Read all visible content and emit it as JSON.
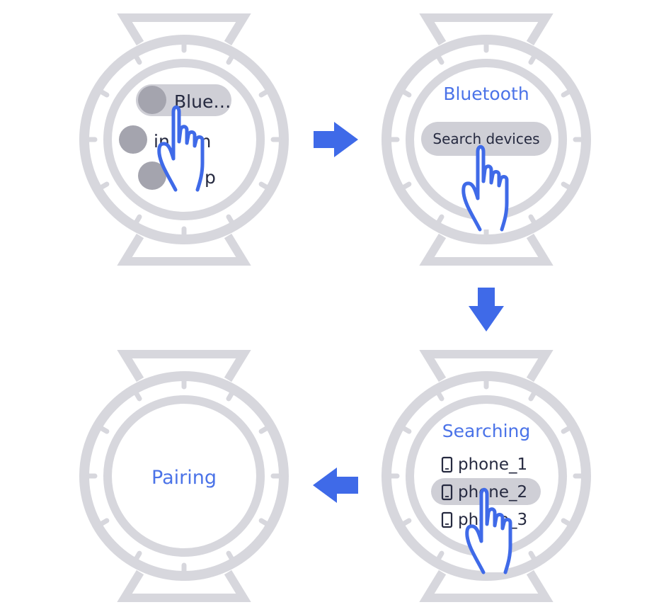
{
  "colors": {
    "watch": "#d7d7dd",
    "pill": "#cfcfd6",
    "dot": "#a4a4ae",
    "accent": "#4b73e8",
    "text": "#262a40"
  },
  "step1": {
    "item1": "Blue…",
    "item2": "in",
    "item2_tail": "m",
    "item3": "p"
  },
  "step2": {
    "title": "Bluetooth",
    "button": "Search devices"
  },
  "step3": {
    "title": "Searching",
    "devices": [
      "phone_1",
      "phone_2",
      "phone_3"
    ],
    "selected_index": 1
  },
  "step4": {
    "title": "Pairing"
  }
}
